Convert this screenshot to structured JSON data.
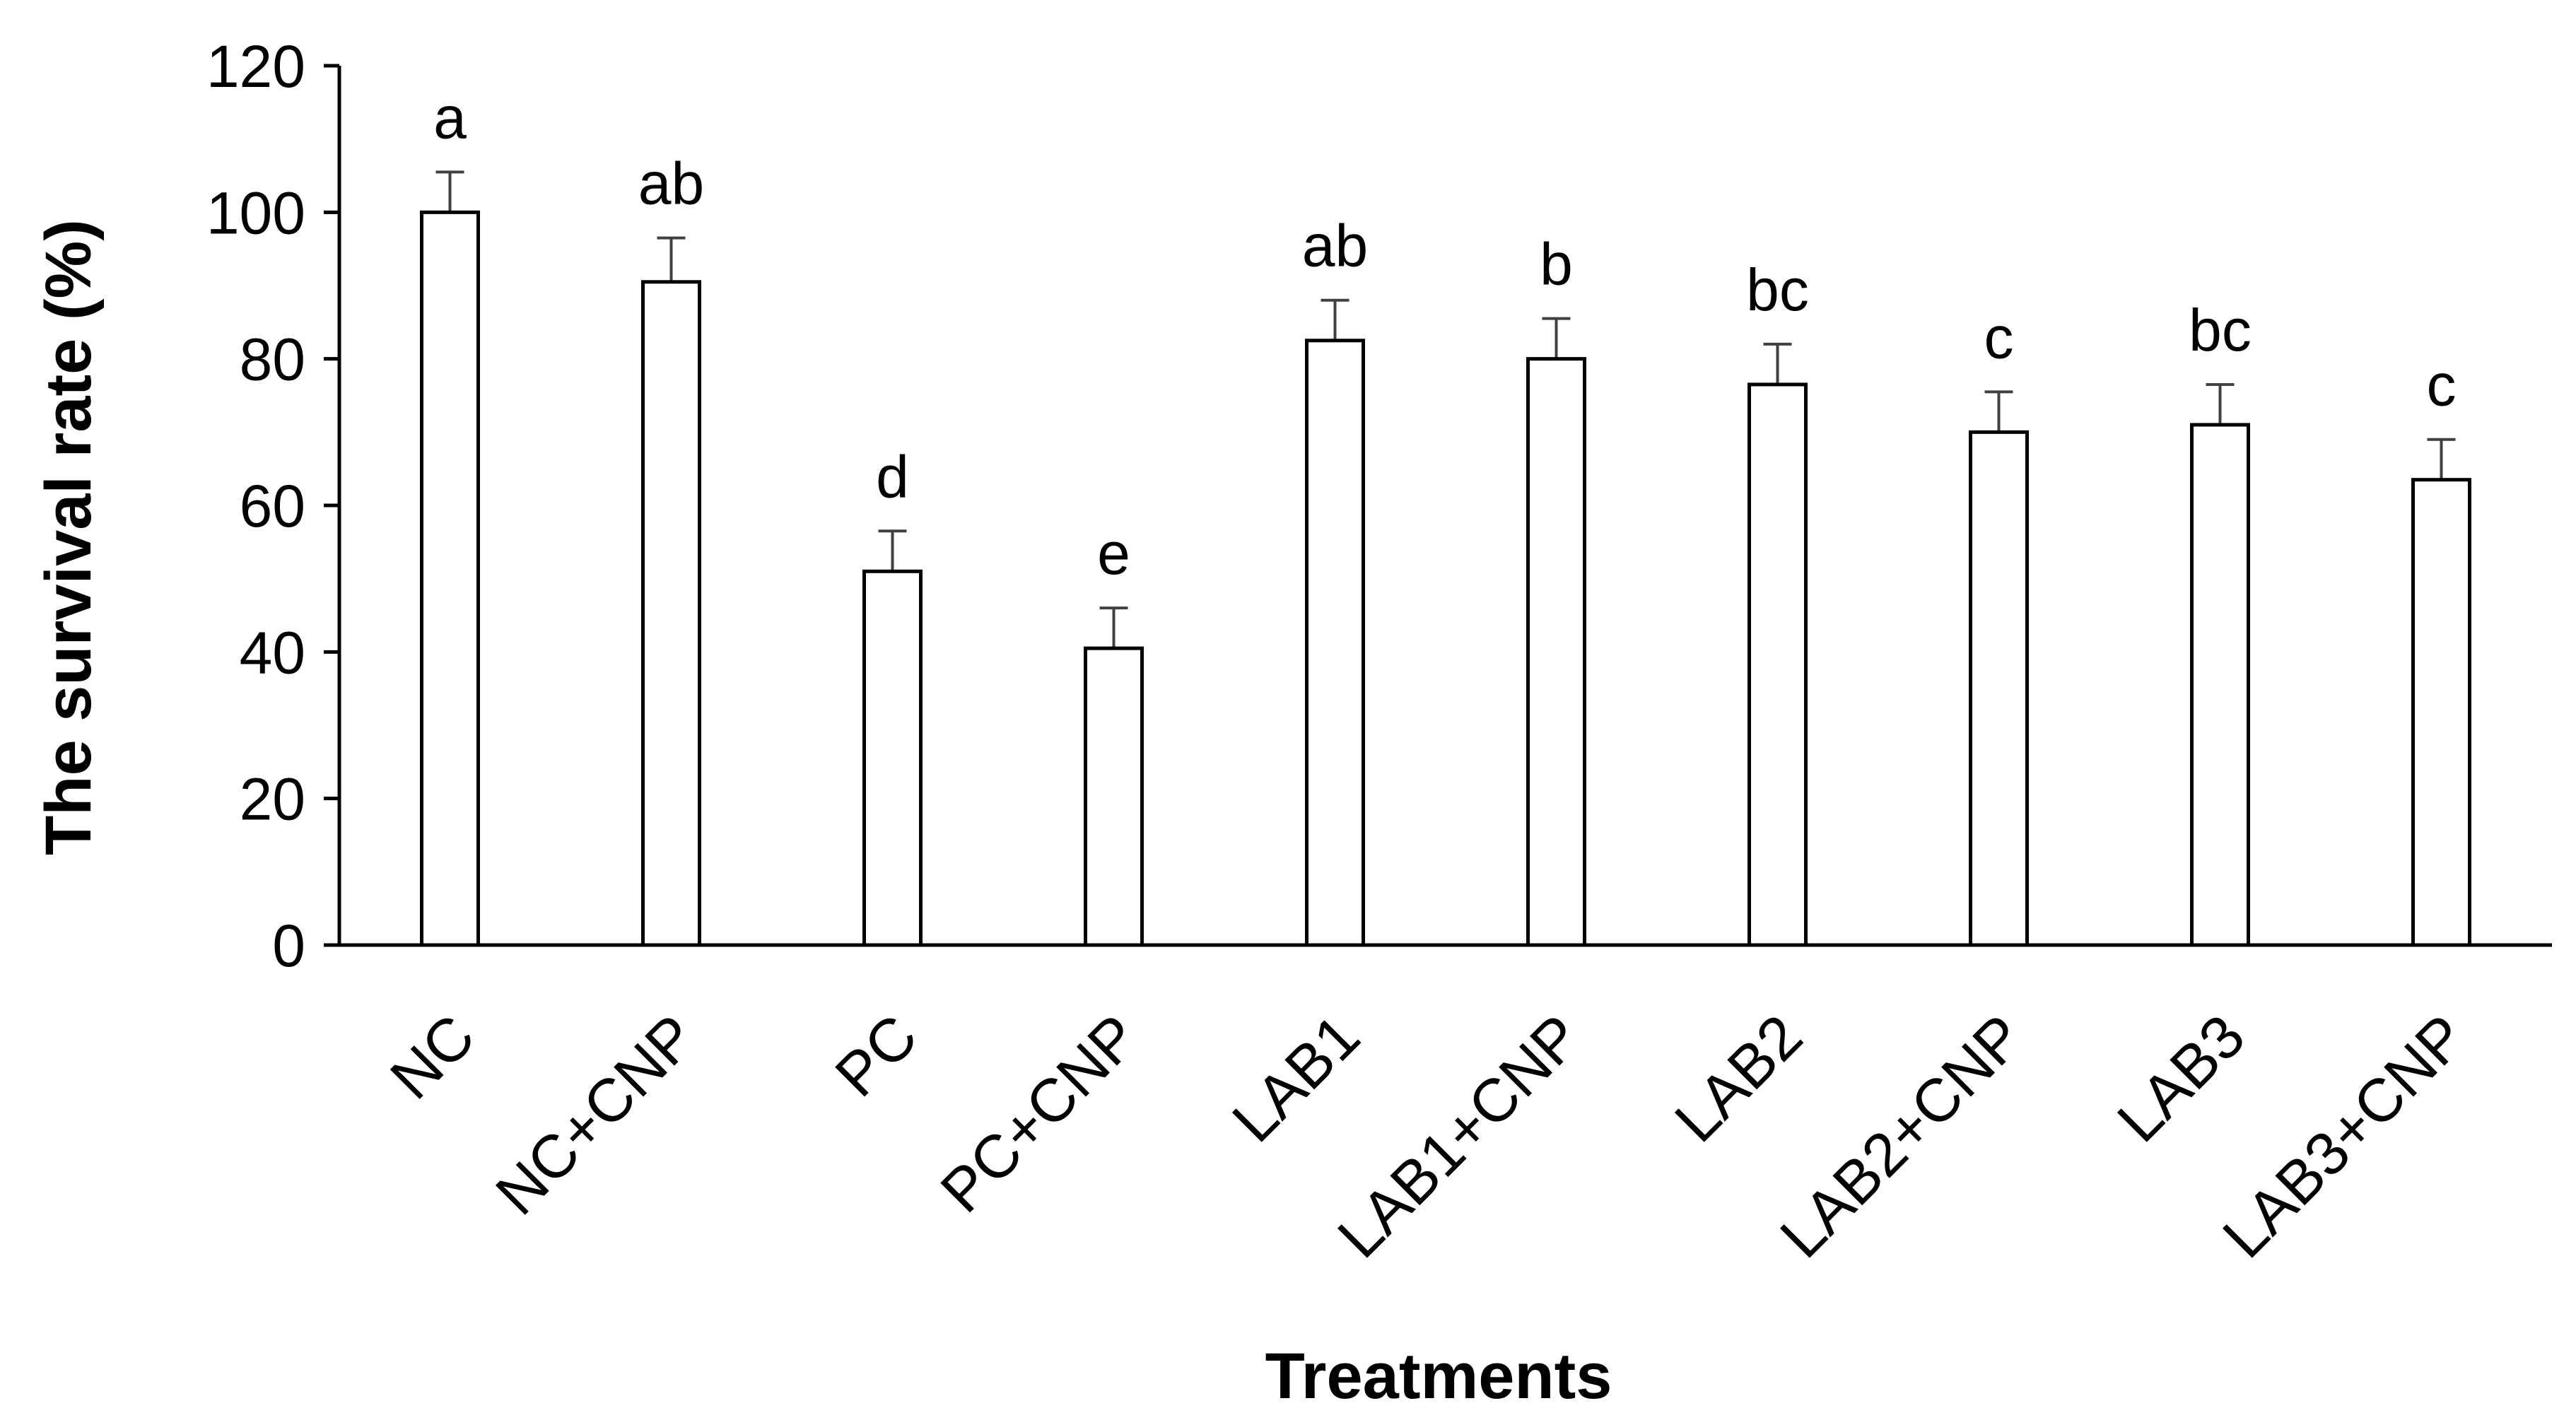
{
  "chart_data": {
    "type": "bar",
    "title": "",
    "xlabel": "Treatments",
    "ylabel": "The survival rate (%)",
    "ylim": [
      0,
      120
    ],
    "yticks": [
      0,
      20,
      40,
      60,
      80,
      100,
      120
    ],
    "grid": false,
    "legend": "none",
    "categories": [
      "NC",
      "NC+CNP",
      "PC",
      "PC+CNP",
      "LAB1",
      "LAB1+CNP",
      "LAB2",
      "LAB2+CNP",
      "LAB3",
      "LAB3+CNP"
    ],
    "values": [
      100,
      90.5,
      51,
      40.5,
      82.5,
      80,
      76.5,
      70,
      71,
      63.5
    ],
    "errors": [
      5.5,
      6,
      5.5,
      5.5,
      5.5,
      5.5,
      5.5,
      5.5,
      5.5,
      5.5
    ],
    "significance_labels": [
      "a",
      "ab",
      "d",
      "e",
      "ab",
      "b",
      "bc",
      "c",
      "bc",
      "c"
    ],
    "colors": {
      "bar_fill": "#ffffff",
      "bar_stroke": "#000000",
      "axis": "#000000",
      "error_bar": "#404040"
    }
  }
}
